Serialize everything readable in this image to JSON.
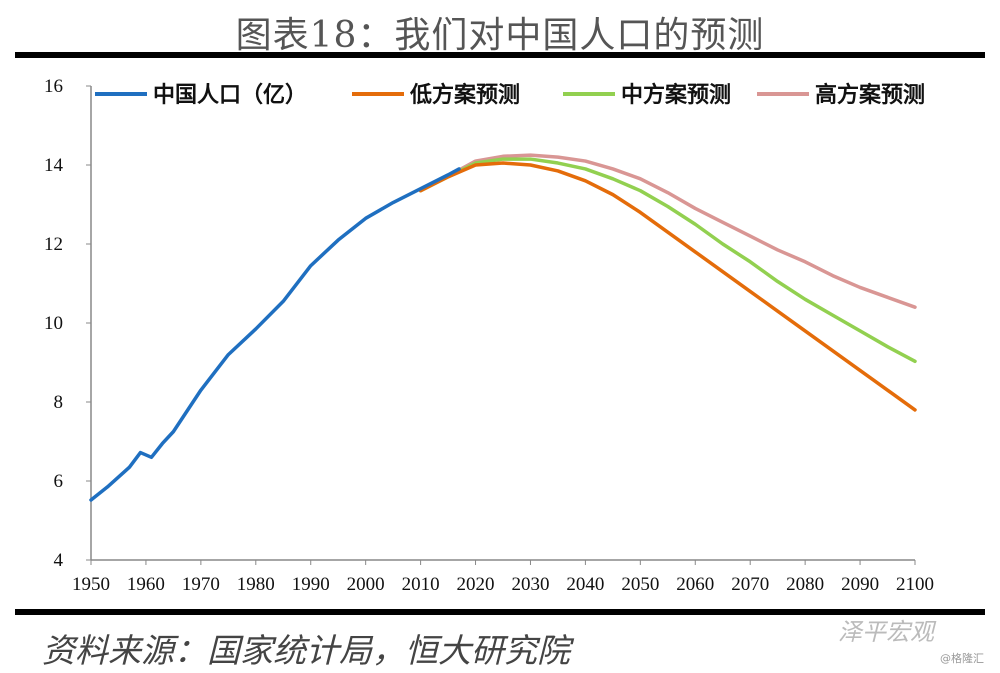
{
  "title": "图表18：我们对中国人口的预测",
  "source": "资料来源：国家统计局，恒大研究院",
  "watermark": {
    "main": "泽平宏观",
    "sub": "@格隆汇"
  },
  "chart_data": {
    "type": "line",
    "xlim": [
      1950,
      2100
    ],
    "ylim": [
      4,
      16
    ],
    "xticks": [
      1950,
      1960,
      1970,
      1980,
      1990,
      2000,
      2010,
      2020,
      2030,
      2040,
      2050,
      2060,
      2070,
      2080,
      2090,
      2100
    ],
    "yticks": [
      4,
      6,
      8,
      10,
      12,
      14,
      16
    ],
    "legend_position": "top",
    "grid": false,
    "series": [
      {
        "name": "中国人口（亿）",
        "color": "#1f6fc0",
        "x": [
          1950,
          1953,
          1955,
          1957,
          1959,
          1961,
          1963,
          1965,
          1970,
          1975,
          1980,
          1985,
          1990,
          1995,
          2000,
          2005,
          2010,
          2015,
          2017
        ],
        "y": [
          5.52,
          5.85,
          6.1,
          6.35,
          6.72,
          6.6,
          6.95,
          7.25,
          8.3,
          9.2,
          9.85,
          10.55,
          11.45,
          12.1,
          12.65,
          13.05,
          13.4,
          13.75,
          13.9
        ]
      },
      {
        "name": "低方案预测",
        "color": "#e46c0a",
        "x": [
          2010,
          2015,
          2020,
          2025,
          2030,
          2035,
          2040,
          2045,
          2050,
          2055,
          2060,
          2065,
          2070,
          2075,
          2080,
          2085,
          2090,
          2095,
          2100
        ],
        "y": [
          13.35,
          13.7,
          14.0,
          14.05,
          14.0,
          13.85,
          13.6,
          13.25,
          12.8,
          12.3,
          11.8,
          11.3,
          10.8,
          10.3,
          9.8,
          9.3,
          8.8,
          8.3,
          7.8
        ]
      },
      {
        "name": "中方案预测",
        "color": "#92d050",
        "x": [
          2010,
          2015,
          2020,
          2025,
          2030,
          2035,
          2040,
          2045,
          2050,
          2055,
          2060,
          2065,
          2070,
          2075,
          2080,
          2085,
          2090,
          2095,
          2100
        ],
        "y": [
          13.35,
          13.7,
          14.05,
          14.15,
          14.15,
          14.05,
          13.9,
          13.65,
          13.35,
          12.95,
          12.5,
          12.0,
          11.55,
          11.05,
          10.6,
          10.2,
          9.8,
          9.4,
          9.03
        ]
      },
      {
        "name": "高方案预测",
        "color": "#d99694",
        "x": [
          2010,
          2015,
          2020,
          2025,
          2030,
          2035,
          2040,
          2045,
          2050,
          2055,
          2060,
          2065,
          2070,
          2075,
          2080,
          2085,
          2090,
          2095,
          2100
        ],
        "y": [
          13.35,
          13.72,
          14.1,
          14.22,
          14.25,
          14.2,
          14.1,
          13.9,
          13.65,
          13.3,
          12.9,
          12.55,
          12.2,
          11.85,
          11.55,
          11.2,
          10.9,
          10.65,
          10.4
        ]
      }
    ]
  }
}
